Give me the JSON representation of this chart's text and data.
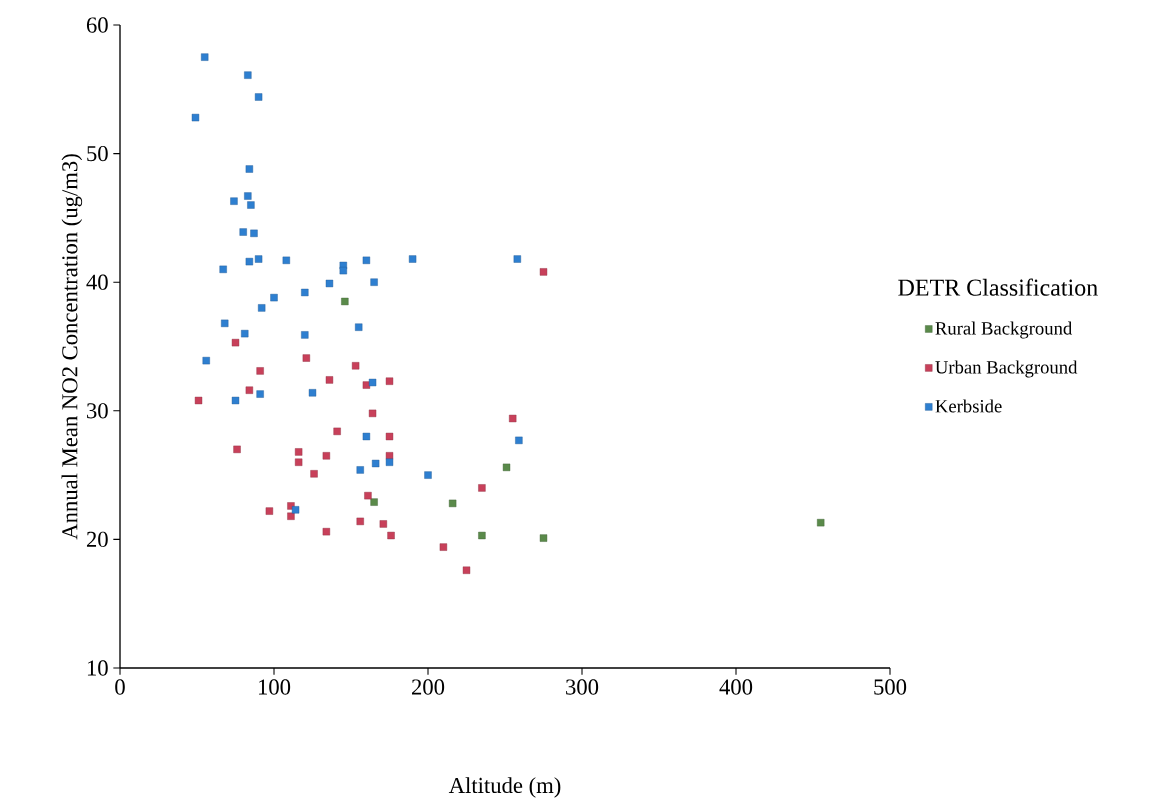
{
  "chart_data": {
    "type": "scatter",
    "xlabel": "Altitude (m)",
    "ylabel": "Annual Mean NO2 Concentration (ug/m3)",
    "legend_title": "DETR Classification",
    "xlim": [
      0,
      500
    ],
    "ylim": [
      10,
      60
    ],
    "xticks": [
      0,
      100,
      200,
      300,
      400,
      500
    ],
    "yticks": [
      10,
      20,
      30,
      40,
      50,
      60
    ],
    "grid": false,
    "legend": "right",
    "marker": "square",
    "series": [
      {
        "name": "Rural Background",
        "color": "#5a8a4a",
        "x": [
          146,
          165,
          216,
          251,
          235,
          275,
          455
        ],
        "values": [
          38.5,
          22.9,
          22.8,
          25.6,
          20.3,
          20.1,
          21.3
        ]
      },
      {
        "name": "Urban Background",
        "color": "#c8405a",
        "x": [
          75,
          121,
          91,
          84,
          51,
          76,
          116,
          116,
          97,
          111,
          111,
          275,
          153,
          136,
          160,
          175,
          164,
          255,
          141,
          175,
          134,
          175,
          126,
          235,
          161,
          156,
          171,
          134,
          176,
          210,
          225
        ],
        "values": [
          35.3,
          34.1,
          33.1,
          31.6,
          30.8,
          27.0,
          26.8,
          26.0,
          22.2,
          22.6,
          21.8,
          40.8,
          33.5,
          32.4,
          32.0,
          32.3,
          29.8,
          29.4,
          28.4,
          28.0,
          26.5,
          26.5,
          25.1,
          24.0,
          23.4,
          21.4,
          21.2,
          20.6,
          20.3,
          19.4,
          17.6
        ]
      },
      {
        "name": "Kerbside",
        "color": "#2e7fd0",
        "x": [
          55,
          83,
          90,
          49,
          84,
          83,
          74,
          85,
          80,
          87,
          84,
          90,
          108,
          67,
          120,
          100,
          92,
          68,
          81,
          120,
          56,
          91,
          75,
          114,
          145,
          145,
          160,
          190,
          258,
          136,
          165,
          155,
          164,
          125,
          160,
          259,
          175,
          166,
          156,
          200
        ],
        "values": [
          57.5,
          56.1,
          54.4,
          52.8,
          48.8,
          46.7,
          46.3,
          46.0,
          43.9,
          43.8,
          41.6,
          41.8,
          41.7,
          41.0,
          39.2,
          38.8,
          38.0,
          36.8,
          36.0,
          35.9,
          33.9,
          31.3,
          30.8,
          22.3,
          41.3,
          40.9,
          41.7,
          41.8,
          41.8,
          39.9,
          40.0,
          36.5,
          32.2,
          31.4,
          28.0,
          27.7,
          26.0,
          25.9,
          25.4,
          25.0
        ]
      }
    ]
  }
}
